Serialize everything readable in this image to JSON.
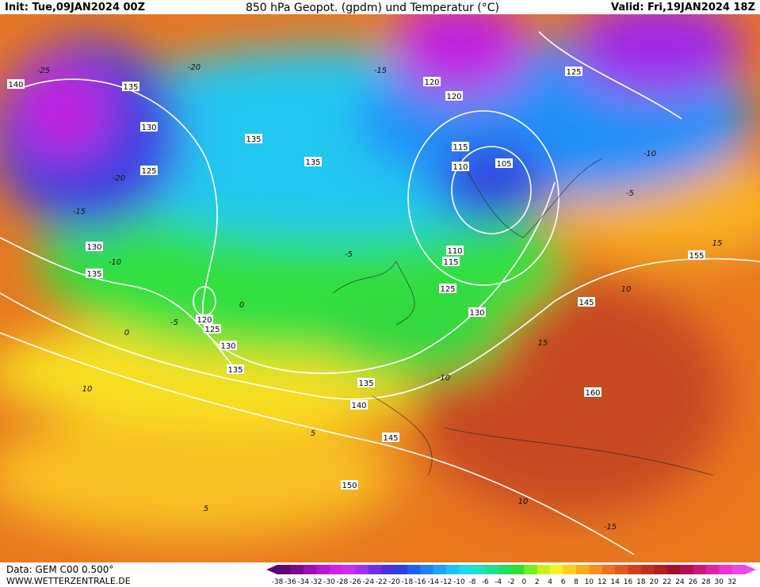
{
  "header": {
    "init": "Init: Tue,09JAN2024 00Z",
    "title": "850 hPa Geopot. (gpdm) und Temperatur (°C)",
    "valid": "Valid: Fri,19JAN2024 18Z"
  },
  "footer": {
    "source": "Data: GEM C00 0.500°",
    "site": "WWW.WETTERZENTRALE.DE"
  },
  "contour_labels": [
    "140",
    "135",
    "130",
    "125",
    "130",
    "135",
    "135",
    "135",
    "120",
    "120",
    "115",
    "110",
    "105",
    "110",
    "115",
    "125",
    "130",
    "145",
    "155",
    "160",
    "120",
    "125",
    "130",
    "135",
    "135",
    "140",
    "145",
    "150",
    "125"
  ],
  "temperature_labels": [
    "-25",
    "-20",
    "-15",
    "-10",
    "-5",
    "0",
    "5",
    "10",
    "15",
    "-20",
    "-15",
    "-10",
    "-5",
    "0",
    "5",
    "10",
    "15",
    "-15",
    "-10",
    "-5",
    "10"
  ],
  "colorbar": {
    "labels": [
      -38,
      -36,
      -34,
      -32,
      -30,
      -28,
      -26,
      -24,
      -22,
      -20,
      -18,
      -16,
      -14,
      -12,
      -10,
      -8,
      -6,
      -4,
      -2,
      0,
      2,
      4,
      6,
      8,
      10,
      12,
      14,
      16,
      18,
      20,
      22,
      24,
      26,
      28,
      30,
      32
    ],
    "colors": [
      "#5a0a6e",
      "#7a0a8e",
      "#9a10b0",
      "#b818d0",
      "#d020e8",
      "#c830f0",
      "#a030f0",
      "#7030e8",
      "#4a30e0",
      "#3040e0",
      "#2060f0",
      "#2080f8",
      "#20a0ff",
      "#20c0ff",
      "#20d8f0",
      "#20e0c0",
      "#20e090",
      "#20e060",
      "#30e030",
      "#70f020",
      "#c8f020",
      "#f8f020",
      "#f8d020",
      "#f8b020",
      "#f89020",
      "#f07020",
      "#e05820",
      "#d04020",
      "#c03020",
      "#b02020",
      "#a01030",
      "#b01050",
      "#c81878",
      "#e020a8",
      "#f030d0",
      "#f048e8"
    ]
  }
}
